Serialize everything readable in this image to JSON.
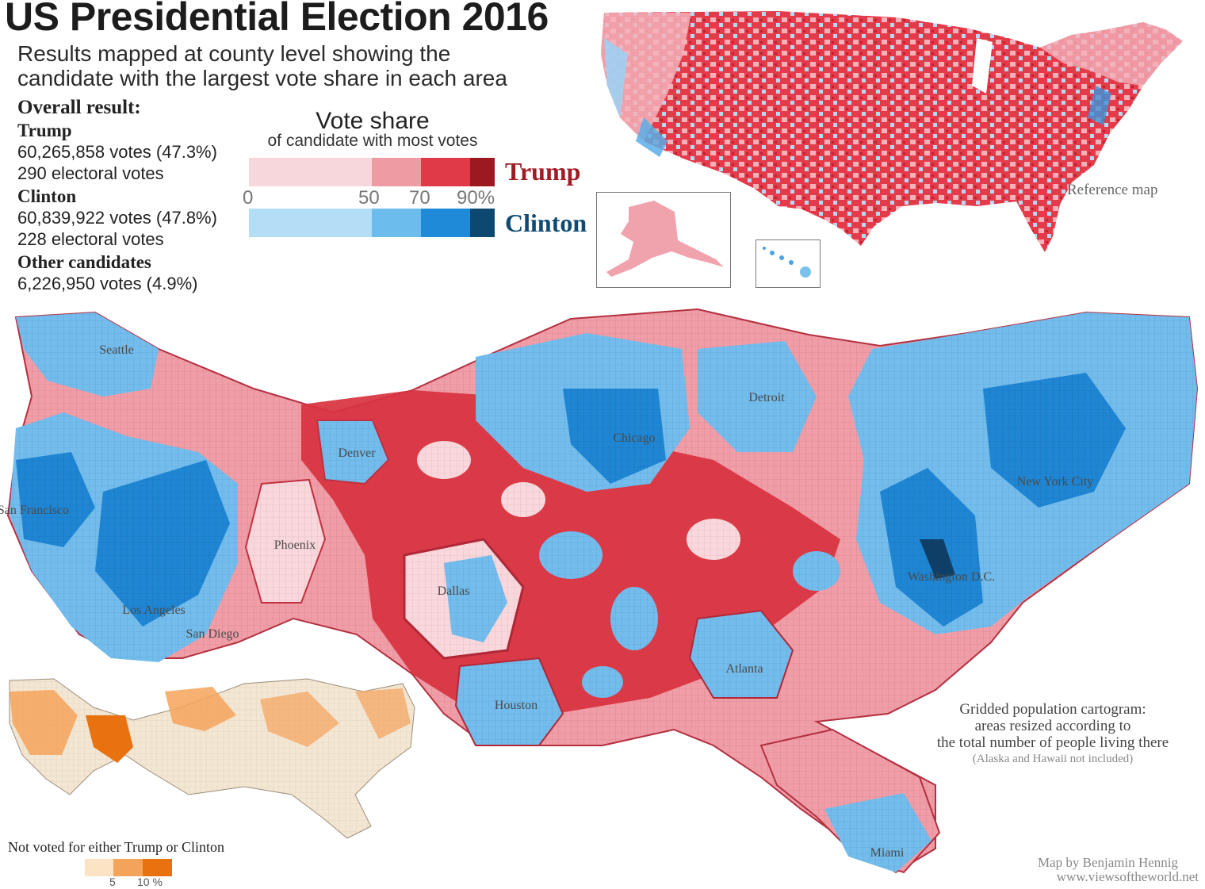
{
  "header": {
    "title": "US Presidential Election 2016",
    "subtitle_line1": "Results mapped at county level showing the",
    "subtitle_line2": "candidate with the largest vote share in each area"
  },
  "results": {
    "heading": "Overall result:",
    "trump": {
      "name": "Trump",
      "votes": "60,265,858 votes (47.3%)",
      "electoral": "290 electoral votes"
    },
    "clinton": {
      "name": "Clinton",
      "votes": "60,839,922 votes (47.8%)",
      "electoral": "228 electoral votes"
    },
    "other": {
      "name": "Other candidates",
      "votes": "6,226,950 votes (4.9%)"
    }
  },
  "legend": {
    "title": "Vote share",
    "subtitle": "of candidate with most votes",
    "ticks": [
      "0",
      "50",
      "70",
      "90%"
    ],
    "trump_label": "Trump",
    "clinton_label": "Clinton",
    "trump_colors": [
      "#f8d7dc",
      "#ef9ba4",
      "#e03a48",
      "#9b1a22"
    ],
    "clinton_colors": [
      "#b4def5",
      "#6cbdee",
      "#1e8ad8",
      "#0d4870"
    ]
  },
  "reference_map": {
    "label": "Reference map"
  },
  "cartogram": {
    "cities": [
      {
        "name": "Seattle"
      },
      {
        "name": "Denver"
      },
      {
        "name": "Chicago"
      },
      {
        "name": "Detroit"
      },
      {
        "name": "New York City"
      },
      {
        "name": "San Francisco"
      },
      {
        "name": "Phoenix"
      },
      {
        "name": "Dallas"
      },
      {
        "name": "Washington D.C."
      },
      {
        "name": "Los Angeles"
      },
      {
        "name": "San Diego"
      },
      {
        "name": "Atlanta"
      },
      {
        "name": "Houston"
      },
      {
        "name": "Miami"
      }
    ],
    "note_line1": "Gridded population cartogram:",
    "note_line2": "areas resized according to",
    "note_line3": "the total number of people living there",
    "note_line4": "(Alaska and Hawaii not included)"
  },
  "third_party": {
    "label": "Not voted for either Trump or Clinton",
    "ticks": [
      "5",
      "10 %"
    ],
    "colors": [
      "#fbe3c4",
      "#f4a35b",
      "#e8720f"
    ]
  },
  "credit": {
    "author": "Map by Benjamin Hennig",
    "url": "www.viewsoftheworld.net"
  }
}
